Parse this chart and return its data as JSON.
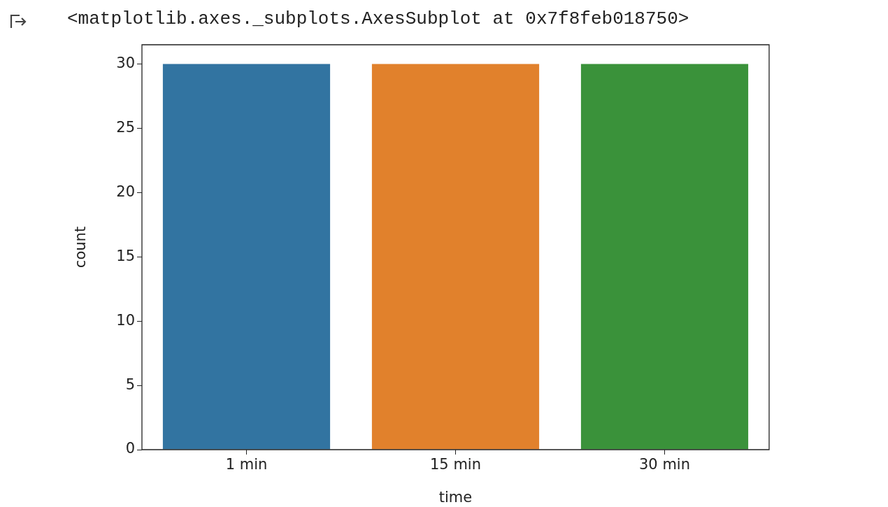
{
  "chart_data": {
    "type": "bar",
    "xlabel": "time",
    "ylabel": "count",
    "annotations": [
      "<matplotlib.axes._subplots.AxesSubplot at 0x7f8feb018750>"
    ],
    "categories": [
      "1 min",
      "15 min",
      "30 min"
    ],
    "values": [
      30,
      30,
      30
    ],
    "colors": [
      "#3274a1",
      "#e1812c",
      "#3a923a"
    ],
    "ylim": [
      0,
      31.5
    ],
    "yticks": [
      0,
      5,
      10,
      15,
      20,
      25,
      30
    ],
    "grid": false,
    "legend": false
  }
}
